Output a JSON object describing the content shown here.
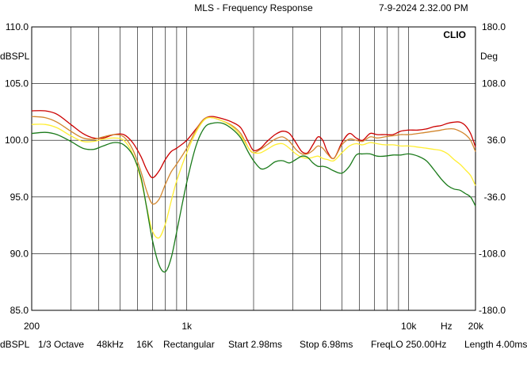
{
  "header": {
    "title": "MLS - Frequency Response",
    "timestamp": "7-9-2024 2.32.00 PM",
    "brand": "CLIO"
  },
  "chart_data": {
    "type": "line",
    "title": "MLS - Frequency Response",
    "x_scale": "log",
    "xlim": [
      200,
      20000
    ],
    "x_ticks": [
      {
        "value": 200,
        "label": "200"
      },
      {
        "value": 1000,
        "label": "1k"
      },
      {
        "value": 10000,
        "label": "10k"
      },
      {
        "value": 20000,
        "label": "20k"
      }
    ],
    "x_unit_label": "Hz",
    "ylabel": "dBSPL",
    "ylim": [
      85,
      110
    ],
    "y_ticks": [
      "110.0",
      "105.0",
      "100.0",
      "95.0",
      "90.0",
      "85.0"
    ],
    "y2label": "Deg",
    "y2lim": [
      -180,
      180
    ],
    "y2_ticks": [
      "180.0",
      "108.0",
      "36.0",
      "-36.0",
      "-108.0",
      "-180.0"
    ],
    "grid": true,
    "series": [
      {
        "color": "#cc0000",
        "x": [
          200,
          230,
          260,
          300,
          340,
          380,
          420,
          470,
          520,
          570,
          620,
          660,
          700,
          750,
          800,
          850,
          900,
          1000,
          1100,
          1200,
          1300,
          1450,
          1600,
          1750,
          1900,
          2000,
          2150,
          2300,
          2500,
          2700,
          2900,
          3100,
          3300,
          3500,
          3700,
          3900,
          4100,
          4300,
          4600,
          5000,
          5400,
          5800,
          6200,
          6700,
          7200,
          7800,
          8500,
          9200,
          10000,
          11000,
          12000,
          13000,
          14000,
          15000,
          16000,
          17000,
          18000,
          19000,
          20000
        ],
        "values": [
          102.6,
          102.6,
          102.3,
          101.4,
          100.6,
          100.2,
          100.2,
          100.5,
          100.5,
          99.8,
          98.6,
          97.4,
          96.7,
          97.3,
          98.3,
          99.0,
          99.3,
          100.0,
          101.0,
          101.9,
          102.1,
          101.9,
          101.6,
          101.1,
          99.8,
          99.1,
          99.3,
          99.9,
          100.5,
          100.8,
          100.6,
          99.8,
          99.0,
          98.9,
          99.6,
          100.3,
          100.0,
          99.0,
          98.4,
          99.8,
          100.6,
          100.2,
          100.0,
          100.6,
          100.5,
          100.5,
          100.5,
          100.8,
          100.9,
          100.9,
          101.0,
          101.2,
          101.3,
          101.5,
          101.6,
          101.6,
          101.3,
          100.6,
          99.4
        ]
      },
      {
        "color": "#d2862d",
        "x": [
          200,
          230,
          260,
          300,
          340,
          380,
          420,
          470,
          520,
          570,
          620,
          660,
          700,
          750,
          800,
          850,
          900,
          1000,
          1100,
          1200,
          1300,
          1450,
          1600,
          1750,
          1900,
          2000,
          2150,
          2300,
          2500,
          2700,
          2900,
          3100,
          3300,
          3500,
          3700,
          3900,
          4100,
          4300,
          4600,
          5000,
          5400,
          5800,
          6200,
          6700,
          7200,
          7800,
          8500,
          9200,
          10000,
          11000,
          12000,
          13000,
          14000,
          15000,
          16000,
          17000,
          18000,
          19000,
          20000
        ],
        "values": [
          102.1,
          102.0,
          101.6,
          100.8,
          100.2,
          100.1,
          100.3,
          100.5,
          100.3,
          99.2,
          97.3,
          95.5,
          94.4,
          94.8,
          96.1,
          97.2,
          97.9,
          99.3,
          100.9,
          101.9,
          102.0,
          101.7,
          101.3,
          100.6,
          99.3,
          98.9,
          99.2,
          99.6,
          100.1,
          100.3,
          99.9,
          99.2,
          98.8,
          98.8,
          99.1,
          99.5,
          99.3,
          98.8,
          98.4,
          99.6,
          100.1,
          100.0,
          99.9,
          100.3,
          100.2,
          100.3,
          100.4,
          100.5,
          100.5,
          100.6,
          100.7,
          100.8,
          100.9,
          101.0,
          101.0,
          100.8,
          100.5,
          100.0,
          99.0
        ]
      },
      {
        "color": "#ffee33",
        "x": [
          200,
          230,
          260,
          300,
          340,
          380,
          420,
          470,
          520,
          570,
          620,
          660,
          700,
          750,
          800,
          850,
          900,
          1000,
          1100,
          1200,
          1300,
          1450,
          1600,
          1750,
          1900,
          2000,
          2150,
          2300,
          2500,
          2700,
          2900,
          3100,
          3300,
          3500,
          3700,
          3900,
          4100,
          4300,
          4600,
          5000,
          5400,
          5800,
          6200,
          6700,
          7200,
          7800,
          8500,
          9200,
          10000,
          11000,
          12000,
          13000,
          14000,
          15000,
          16000,
          17000,
          18000,
          19000,
          20000
        ],
        "values": [
          101.4,
          101.4,
          101.1,
          100.4,
          99.9,
          99.9,
          100.1,
          100.2,
          100.0,
          98.8,
          96.6,
          94.1,
          92.0,
          91.4,
          92.6,
          94.6,
          96.4,
          98.9,
          100.7,
          101.8,
          102.0,
          101.7,
          101.2,
          100.4,
          99.3,
          98.9,
          98.9,
          99.2,
          99.6,
          99.7,
          99.3,
          98.8,
          98.5,
          98.4,
          98.5,
          98.6,
          98.4,
          98.3,
          98.2,
          98.9,
          99.5,
          99.7,
          99.6,
          99.8,
          99.7,
          99.6,
          99.6,
          99.5,
          99.5,
          99.4,
          99.3,
          99.2,
          99.1,
          98.8,
          98.3,
          97.9,
          97.4,
          96.9,
          96.0
        ]
      },
      {
        "color": "#1a7a1a",
        "x": [
          200,
          230,
          260,
          300,
          340,
          380,
          420,
          470,
          520,
          570,
          620,
          660,
          700,
          750,
          800,
          850,
          900,
          1000,
          1100,
          1200,
          1300,
          1450,
          1600,
          1750,
          1900,
          2000,
          2150,
          2300,
          2500,
          2700,
          2900,
          3100,
          3300,
          3500,
          3700,
          3900,
          4100,
          4300,
          4600,
          5000,
          5400,
          5800,
          6200,
          6700,
          7200,
          7800,
          8500,
          9200,
          10000,
          11000,
          12000,
          13000,
          14000,
          15000,
          16000,
          17000,
          18000,
          19000,
          20000
        ],
        "values": [
          100.6,
          100.7,
          100.5,
          99.9,
          99.3,
          99.2,
          99.5,
          99.8,
          99.6,
          98.7,
          96.8,
          94.0,
          91.2,
          89.0,
          88.4,
          89.6,
          91.9,
          96.3,
          99.5,
          101.1,
          101.5,
          101.5,
          101.0,
          100.2,
          98.9,
          98.2,
          97.5,
          97.6,
          98.1,
          98.2,
          98.0,
          98.3,
          98.6,
          98.5,
          98.0,
          97.7,
          97.7,
          97.6,
          97.3,
          97.1,
          97.7,
          98.7,
          98.8,
          98.8,
          98.6,
          98.6,
          98.7,
          98.7,
          98.8,
          98.6,
          98.2,
          97.4,
          96.6,
          96.0,
          95.7,
          95.6,
          95.3,
          95.0,
          94.2
        ]
      }
    ]
  },
  "footer": {
    "unit": "dBSPL",
    "smoothing": "1/3 Octave",
    "sample_rate": "48kHz",
    "size": "16K",
    "window": "Rectangular",
    "start": "Start 2.98ms",
    "stop": "Stop 6.98ms",
    "freq_lo": "FreqLO 250.00Hz",
    "length": "Length 4.00ms"
  }
}
